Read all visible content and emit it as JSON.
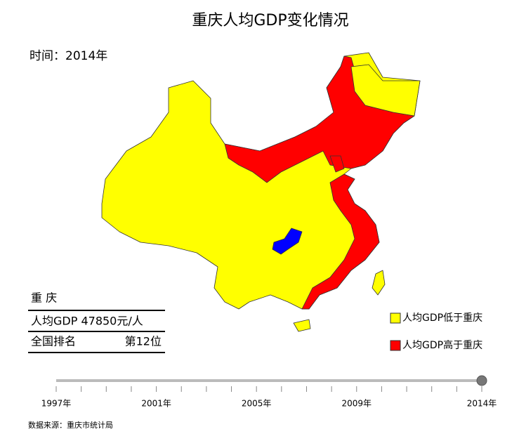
{
  "title": "重庆人均GDP变化情况",
  "time_label": "时间：2014年",
  "info": {
    "city": "重 庆",
    "gdp": "人均GDP 47850元/人",
    "rank_label": "全国排名",
    "rank": "第12位"
  },
  "legend": [
    {
      "name": "人均GDP低于重庆",
      "color": "#ffff00"
    },
    {
      "name": "人均GDP高于重庆",
      "color": "#ff0000"
    }
  ],
  "timeline": {
    "labels": [
      "1997年",
      "2001年",
      "2005年",
      "2009年",
      "2014年"
    ]
  },
  "source": "数据来源：重庆市统计局"
}
